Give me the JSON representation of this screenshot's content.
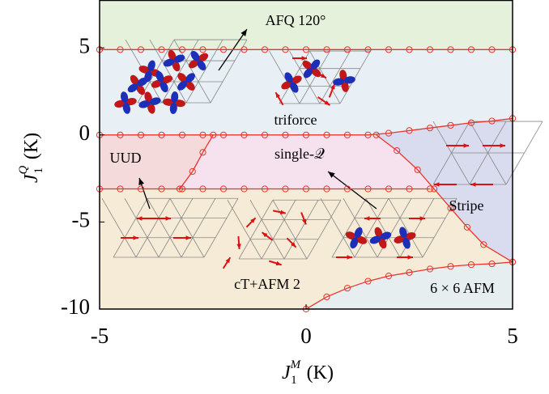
{
  "chart_data": {
    "type": "phase-diagram",
    "x_label": {
      "symbol": "J",
      "subscript": "1",
      "superscript": "M",
      "unit": "(K)"
    },
    "y_label": {
      "symbol": "J",
      "subscript": "1",
      "superscript": "Q",
      "unit": "(K)"
    },
    "xlim": [
      -5,
      5
    ],
    "ylim": [
      -10,
      7.75
    ],
    "xticks": [
      -5,
      0,
      5
    ],
    "yticks": [
      -10,
      -5,
      0,
      5
    ],
    "line_color": "#e8352b",
    "boundaries": [
      {
        "x": [
          -5,
          -4.5,
          -4,
          -3.5,
          -3,
          -2.5,
          -2,
          -1.5,
          -1,
          -0.5,
          0,
          0.5,
          1,
          1.5,
          2,
          2.5,
          3,
          3.5,
          4,
          4.5,
          5
        ],
        "y": [
          4.9,
          4.9,
          4.9,
          4.9,
          4.9,
          4.9,
          4.9,
          4.9,
          4.9,
          4.9,
          4.9,
          4.9,
          4.9,
          4.9,
          4.9,
          4.9,
          4.9,
          4.9,
          4.9,
          4.9,
          4.9
        ]
      },
      {
        "x": [
          -5,
          -4.5,
          -4,
          -3.5,
          -3,
          -2.5,
          -2,
          -1.5,
          -1,
          -0.5,
          0,
          0.5,
          1,
          1.5,
          2,
          2.5,
          3,
          3.5,
          4,
          4.5,
          5
        ],
        "y": [
          0,
          0,
          0,
          0,
          0,
          0,
          0,
          0,
          0,
          0,
          0,
          0,
          0,
          0,
          0.1,
          0.25,
          0.4,
          0.55,
          0.7,
          0.8,
          0.95
        ]
      },
      {
        "x": [
          -5,
          -4.5,
          -4,
          -3.5,
          -3,
          -2.5,
          -2,
          -1.5,
          -1,
          -0.5,
          0,
          0.5,
          1,
          1.5,
          2,
          2.5,
          3
        ],
        "y": [
          -3.1,
          -3.1,
          -3.1,
          -3.1,
          -3.1,
          -3.1,
          -3.1,
          -3.1,
          -3.1,
          -3.1,
          -3.1,
          -3.1,
          -3.1,
          -3.1,
          -3.1,
          -3.1,
          -3.1
        ]
      },
      {
        "x": [
          -3.06,
          -2.75,
          -2.5,
          -2.25
        ],
        "y": [
          -3.1,
          -2.1,
          -1,
          0
        ]
      },
      {
        "x": [
          1.7,
          2.2,
          2.7,
          3.1,
          3.5,
          3.9,
          4.3,
          5
        ],
        "y": [
          0,
          -0.9,
          -2,
          -3.1,
          -4.2,
          -5.3,
          -6.3,
          -7.3
        ]
      },
      {
        "x": [
          0,
          0.5,
          1,
          1.5,
          2,
          2.5,
          3,
          3.5,
          4,
          4.5,
          5
        ],
        "y": [
          -10,
          -9.3,
          -8.8,
          -8.4,
          -8.1,
          -7.9,
          -7.7,
          -7.55,
          -7.45,
          -7.4,
          -7.3
        ]
      }
    ],
    "regions": [
      {
        "label": "AFQ 120°",
        "color": "#e5f1da"
      },
      {
        "label": "triforce",
        "color": "#e8f0f5"
      },
      {
        "label": "UUD",
        "color": "#f4dada"
      },
      {
        "label": "single-𝒬",
        "color": "#f5e2ee"
      },
      {
        "label": "Stripe",
        "color": "#d9dcee"
      },
      {
        "label": "cT+AFM 2",
        "color": "#f6ebd6"
      },
      {
        "label": "6 × 6 AFM",
        "color": "#e7eef0"
      }
    ]
  }
}
